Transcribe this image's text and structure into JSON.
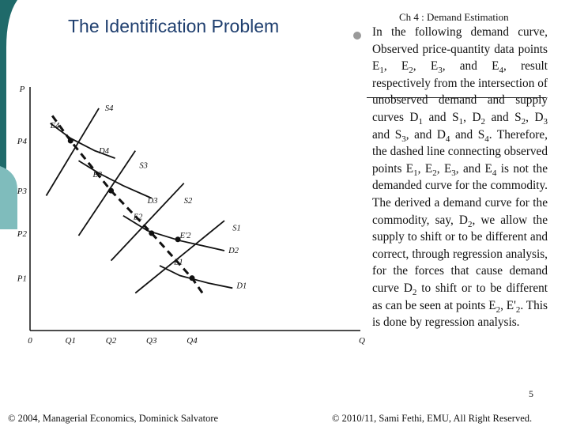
{
  "slide": {
    "title": "The Identification Problem",
    "chapter": "Ch 4 : Demand Estimation",
    "number": "5",
    "footer_left": "© 2004, Managerial Economics, Dominick Salvatore",
    "footer_right": "© 2010/11, Sami Fethi, EMU, All Right Reserved."
  },
  "bullet": {
    "segments": [
      {
        "t": "In the following demand curve, Observed price-quantity data points E"
      },
      {
        "t": "1",
        "sub": true
      },
      {
        "t": ", E"
      },
      {
        "t": "2",
        "sub": true
      },
      {
        "t": ", E"
      },
      {
        "t": "3",
        "sub": true
      },
      {
        "t": ", and E"
      },
      {
        "t": "4",
        "sub": true
      },
      {
        "t": ", result respectively from the intersection of unobserved demand and supply curves D"
      },
      {
        "t": "1",
        "sub": true
      },
      {
        "t": " and S"
      },
      {
        "t": "1",
        "sub": true
      },
      {
        "t": ", D"
      },
      {
        "t": "2",
        "sub": true
      },
      {
        "t": " and S"
      },
      {
        "t": "2",
        "sub": true
      },
      {
        "t": ", D"
      },
      {
        "t": "3",
        "sub": true
      },
      {
        "t": " and S"
      },
      {
        "t": "3",
        "sub": true
      },
      {
        "t": ", and D"
      },
      {
        "t": "4",
        "sub": true
      },
      {
        "t": " and S"
      },
      {
        "t": "4",
        "sub": true
      },
      {
        "t": ". Therefore, the dashed line connecting observed points E"
      },
      {
        "t": "1",
        "sub": true
      },
      {
        "t": ", E"
      },
      {
        "t": "2",
        "sub": true
      },
      {
        "t": ", E"
      },
      {
        "t": "3",
        "sub": true
      },
      {
        "t": ", and E"
      },
      {
        "t": "4",
        "sub": true
      },
      {
        "t": " is not the demanded curve for the commodity. The derived a demand curve for the commodity, say, D"
      },
      {
        "t": "2",
        "sub": true
      },
      {
        "t": ", we allow the supply to shift or to be different and correct, through regression analysis, for the forces that cause demand curve D"
      },
      {
        "t": "2",
        "sub": true
      },
      {
        "t": " to shift or to be different as can be seen at points E"
      },
      {
        "t": "2",
        "sub": true
      },
      {
        "t": ", E'"
      },
      {
        "t": "2",
        "sub": true
      },
      {
        "t": ". This is done by regression analysis."
      }
    ]
  },
  "colors": {
    "title": "#1f3f6f",
    "deco_dark": "#1f6a6a",
    "deco_light": "#7fbcbc",
    "curve": "#111111"
  },
  "chart_data": {
    "type": "line",
    "title": "",
    "xlabel": "Q",
    "ylabel": "P",
    "origin_label": "0",
    "xlim": [
      0,
      8
    ],
    "ylim": [
      0,
      9.5
    ],
    "x_ticks": [
      {
        "label": "Q1",
        "value": 1
      },
      {
        "label": "Q2",
        "value": 2
      },
      {
        "label": "Q3",
        "value": 3
      },
      {
        "label": "Q4",
        "value": 4
      }
    ],
    "y_ticks": [
      {
        "label": "P1",
        "value": 2.1
      },
      {
        "label": "P2",
        "value": 3.9
      },
      {
        "label": "P3",
        "value": 5.6
      },
      {
        "label": "P4",
        "value": 7.6
      }
    ],
    "series": [
      {
        "name": "S1",
        "kind": "supply",
        "points": [
          [
            2.6,
            1.5
          ],
          [
            4.8,
            4.4
          ]
        ]
      },
      {
        "name": "S2",
        "kind": "supply",
        "points": [
          [
            2.0,
            2.8
          ],
          [
            3.8,
            5.9
          ]
        ]
      },
      {
        "name": "S3",
        "kind": "supply",
        "points": [
          [
            1.2,
            3.8
          ],
          [
            2.6,
            7.2
          ]
        ]
      },
      {
        "name": "S4",
        "kind": "supply",
        "points": [
          [
            0.4,
            5.4
          ],
          [
            1.7,
            8.9
          ]
        ]
      },
      {
        "name": "D1",
        "kind": "demand",
        "points": [
          [
            3.2,
            2.6
          ],
          [
            3.7,
            2.2
          ],
          [
            4.4,
            1.9
          ],
          [
            5.0,
            1.7
          ]
        ]
      },
      {
        "name": "D2",
        "kind": "demand",
        "points": [
          [
            2.3,
            4.6
          ],
          [
            2.9,
            4.0
          ],
          [
            3.7,
            3.6
          ],
          [
            4.8,
            3.2
          ]
        ]
      },
      {
        "name": "D3",
        "kind": "demand",
        "points": [
          [
            1.2,
            6.8
          ],
          [
            1.7,
            6.3
          ],
          [
            2.3,
            5.8
          ],
          [
            3.0,
            5.3
          ]
        ]
      },
      {
        "name": "D4",
        "kind": "demand",
        "points": [
          [
            0.5,
            8.3
          ],
          [
            1.0,
            7.7
          ],
          [
            1.6,
            7.2
          ],
          [
            2.1,
            6.9
          ]
        ]
      },
      {
        "name": "observed",
        "kind": "dashed",
        "points": [
          [
            0.55,
            8.6
          ],
          [
            1.0,
            7.6
          ],
          [
            2.0,
            5.6
          ],
          [
            3.0,
            3.9
          ],
          [
            4.0,
            2.1
          ],
          [
            4.3,
            1.4
          ]
        ]
      }
    ],
    "curve_labels": [
      {
        "label": "S4",
        "x": 1.85,
        "y": 8.8
      },
      {
        "label": "D4",
        "x": 1.7,
        "y": 7.1
      },
      {
        "label": "S3",
        "x": 2.7,
        "y": 6.5
      },
      {
        "label": "D3",
        "x": 2.9,
        "y": 5.1
      },
      {
        "label": "S2",
        "x": 3.8,
        "y": 5.1
      },
      {
        "label": "S1",
        "x": 5.0,
        "y": 4.0
      },
      {
        "label": "D2",
        "x": 4.9,
        "y": 3.1
      },
      {
        "label": "D1",
        "x": 5.1,
        "y": 1.7
      }
    ],
    "points": [
      {
        "label": "E4",
        "x": 1,
        "y": 7.6,
        "lx": 0.5,
        "ly": 8.1
      },
      {
        "label": "E3",
        "x": 2,
        "y": 5.6,
        "lx": 1.55,
        "ly": 6.15
      },
      {
        "label": "E2",
        "x": 3,
        "y": 3.9,
        "lx": 2.55,
        "ly": 4.45
      },
      {
        "label": "E'2",
        "x": 3.65,
        "y": 3.65,
        "lx": 3.7,
        "ly": 3.7
      },
      {
        "label": "E1",
        "x": 4,
        "y": 2.1,
        "lx": 3.55,
        "ly": 2.65
      }
    ]
  }
}
